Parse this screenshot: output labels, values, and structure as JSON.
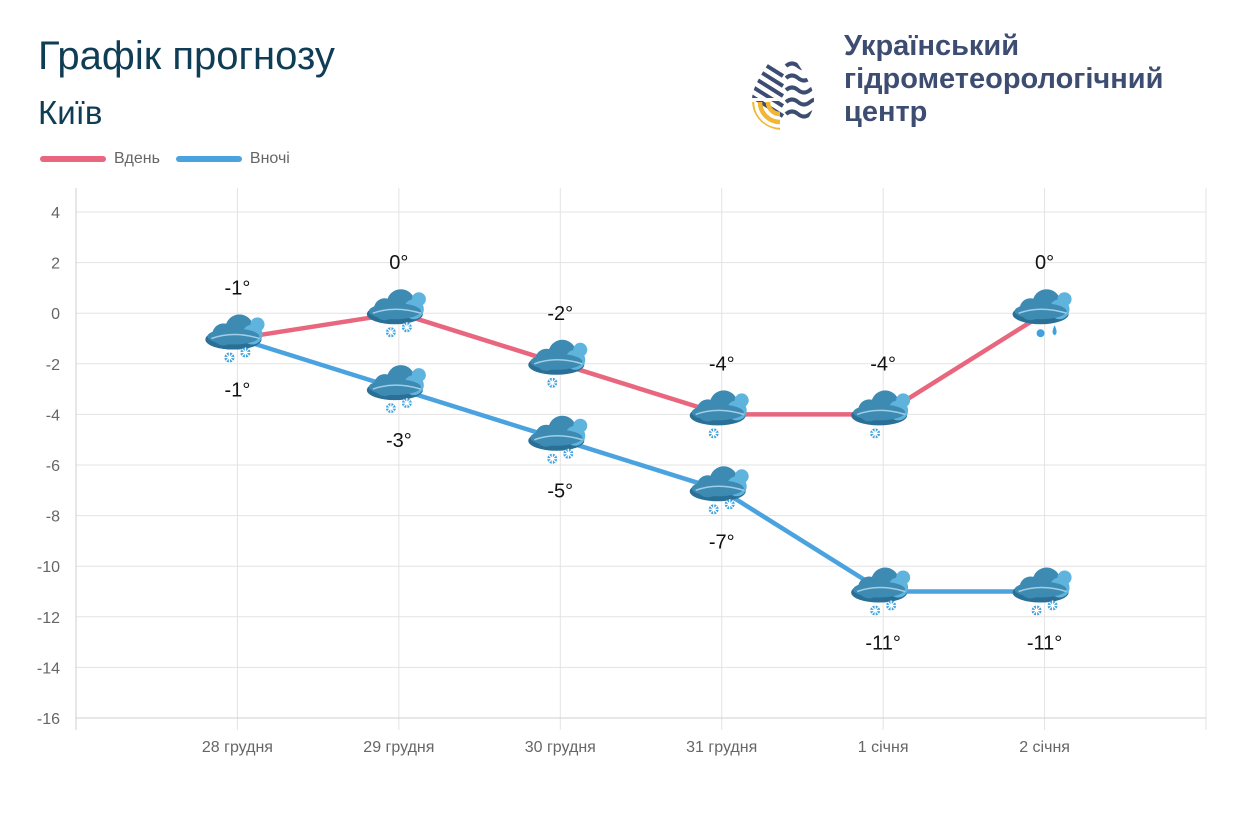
{
  "header": {
    "title": "Графік прогнозу",
    "city": "Київ"
  },
  "org": {
    "line1": "Український",
    "line2": "гідрометеорологічний",
    "line3": "центр",
    "logo_icon": "drop-logo-icon"
  },
  "colors": {
    "day": "#e8677e",
    "night": "#4aa3df",
    "title": "#0f3d55",
    "org": "#3d4d72",
    "grid": "#e3e3e3",
    "axis_text": "#666666"
  },
  "chart_data": {
    "type": "line",
    "categories": [
      "28 грудня",
      "29 грудня",
      "30 грудня",
      "31 грудня",
      "1 січня",
      "2 січня"
    ],
    "series": [
      {
        "name": "Вдень",
        "values": [
          -1,
          0,
          -2,
          -4,
          -4,
          0
        ],
        "labels": [
          "-1°",
          "0°",
          "-2°",
          "-4°",
          "-4°",
          "0°"
        ],
        "icons": [
          "cloud-snow-icon",
          "cloud-snow-icon",
          "cloud-snow-icon",
          "cloud-snow-icon",
          "cloud-snow-icon",
          "cloud-rain-icon"
        ]
      },
      {
        "name": "Вночі",
        "values": [
          -1,
          -3,
          -5,
          -7,
          -11,
          -11
        ],
        "labels": [
          "-1°",
          "-3°",
          "-5°",
          "-7°",
          "-11°",
          "-11°"
        ],
        "icons": [
          "cloud-snow-icon",
          "cloud-snow-icon",
          "cloud-snow-icon",
          "cloud-snow-icon",
          "cloud-snow-icon",
          "cloud-snow-icon"
        ]
      }
    ],
    "yticks": [
      4,
      2,
      0,
      -2,
      -4,
      -6,
      -8,
      -10,
      -12,
      -14,
      -16
    ],
    "ylim": [
      -16,
      4
    ],
    "legend_position": "top-left",
    "grid": true
  }
}
